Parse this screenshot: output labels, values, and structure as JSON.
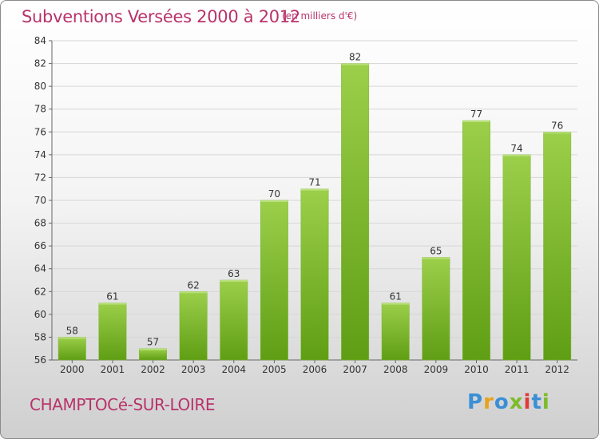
{
  "header": {
    "title": "Subventions Versées 2000 à 2012",
    "subtitle": "(en milliers d'€)"
  },
  "footer": {
    "commune": "CHAMPTOCé-SUR-LOIRE",
    "logo_letters": [
      "P",
      "r",
      "o",
      "x",
      "i",
      "t",
      "i"
    ],
    "logo_colors": [
      "#3b8fd6",
      "#e8a21c",
      "#3b8fd6",
      "#7cbb2a",
      "#e23a3a",
      "#3b8fd6",
      "#7cbb2a"
    ]
  },
  "chart_data": {
    "type": "bar",
    "categories": [
      "2000",
      "2001",
      "2002",
      "2003",
      "2004",
      "2005",
      "2006",
      "2007",
      "2008",
      "2009",
      "2010",
      "2011",
      "2012"
    ],
    "values": [
      58,
      61,
      57,
      62,
      63,
      70,
      71,
      82,
      61,
      65,
      77,
      74,
      76
    ],
    "title": "Subventions Versées 2000 à 2012",
    "subtitle": "(en milliers d'€)",
    "xlabel": "",
    "ylabel": "",
    "ylim": [
      56,
      84
    ],
    "yticks": [
      56,
      58,
      60,
      62,
      64,
      66,
      68,
      70,
      72,
      74,
      76,
      78,
      80,
      82,
      84
    ],
    "grid": true,
    "bar_color": "#8dc63f"
  }
}
